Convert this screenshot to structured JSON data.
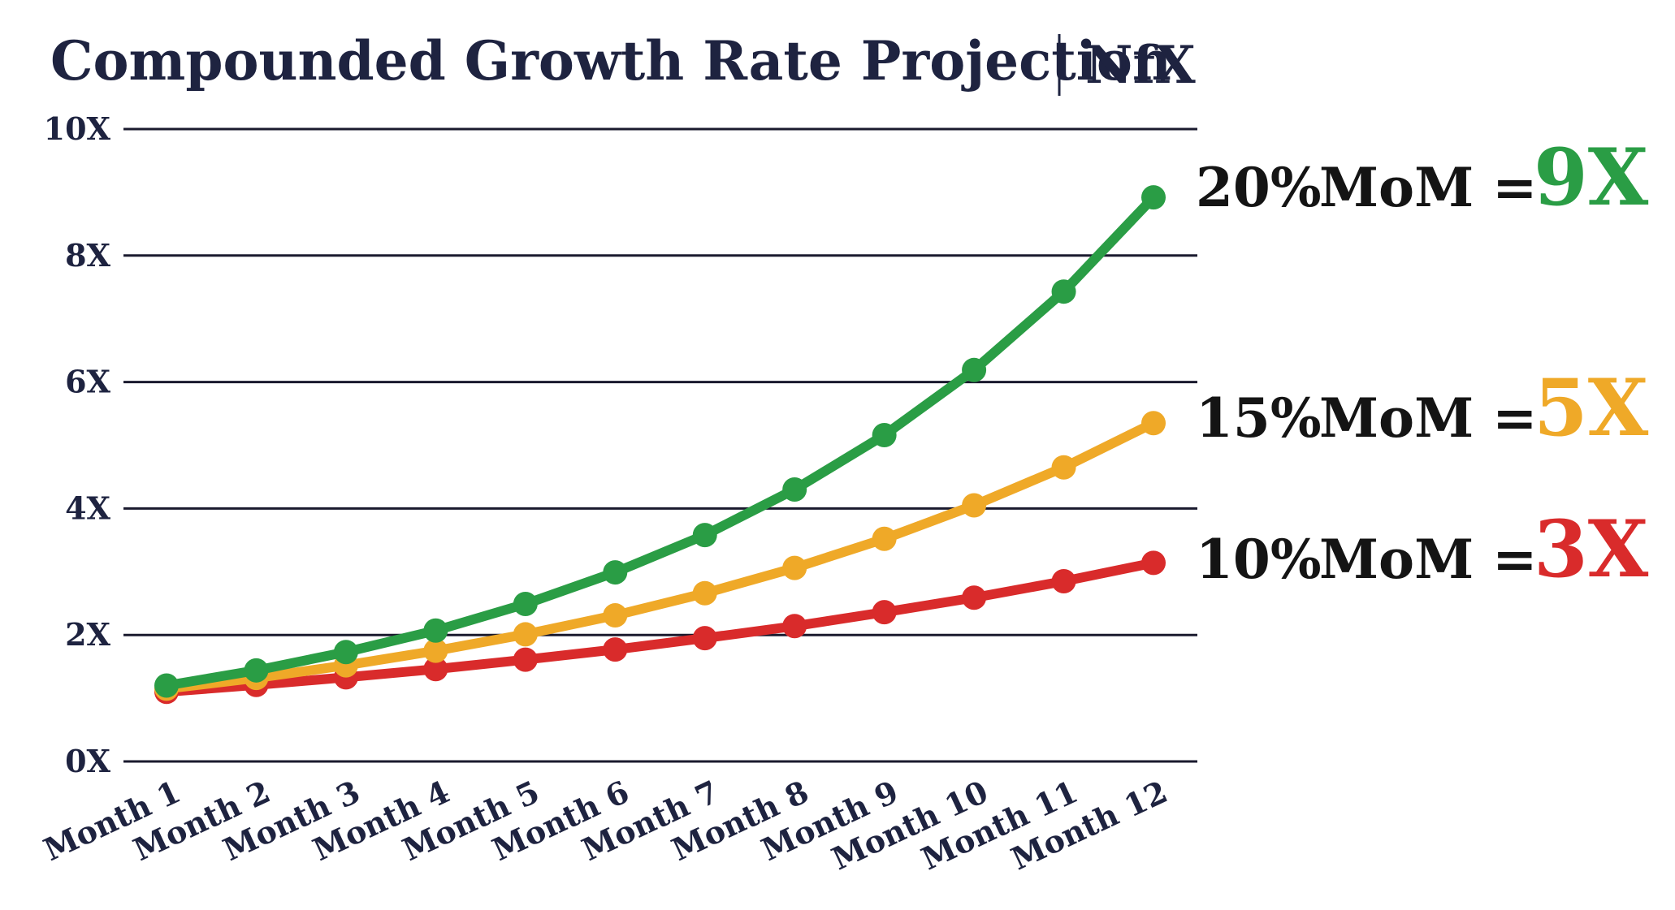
{
  "colors": {
    "title": "#1e2340",
    "grid": "#1a1a2e",
    "label_text": "#141414"
  },
  "chart_data": {
    "type": "line",
    "title": "Compounded Growth Rate Projection",
    "brand": "NfX",
    "xlabel": "",
    "ylabel": "",
    "categories": [
      "Month 1",
      "Month 2",
      "Month 3",
      "Month 4",
      "Month 5",
      "Month 6",
      "Month 7",
      "Month 8",
      "Month 9",
      "Month 10",
      "Month 11",
      "Month 12"
    ],
    "ylim": [
      0,
      10
    ],
    "yticks": [
      0,
      2,
      4,
      6,
      8,
      10
    ],
    "ytick_labels": [
      "0X",
      "2X",
      "4X",
      "6X",
      "8X",
      "10X"
    ],
    "grid": true,
    "series": [
      {
        "name": "10% MoM",
        "label_prefix": "10%",
        "label_mid": "MoM =",
        "label_value": "3X",
        "color": "#d92b2b",
        "values": [
          1.1,
          1.21,
          1.33,
          1.46,
          1.61,
          1.77,
          1.95,
          2.14,
          2.36,
          2.59,
          2.85,
          3.14
        ]
      },
      {
        "name": "15% MoM",
        "label_prefix": "15%",
        "label_mid": "MoM =",
        "label_value": "5X",
        "color": "#efa928",
        "values": [
          1.15,
          1.32,
          1.52,
          1.75,
          2.01,
          2.31,
          2.66,
          3.06,
          3.52,
          4.05,
          4.65,
          5.35
        ]
      },
      {
        "name": "20% MoM",
        "label_prefix": "20%",
        "label_mid": "MoM =",
        "label_value": "9X",
        "color": "#2a9d45",
        "values": [
          1.2,
          1.44,
          1.73,
          2.07,
          2.49,
          2.99,
          3.58,
          4.3,
          5.16,
          6.19,
          7.43,
          8.92
        ]
      }
    ]
  }
}
